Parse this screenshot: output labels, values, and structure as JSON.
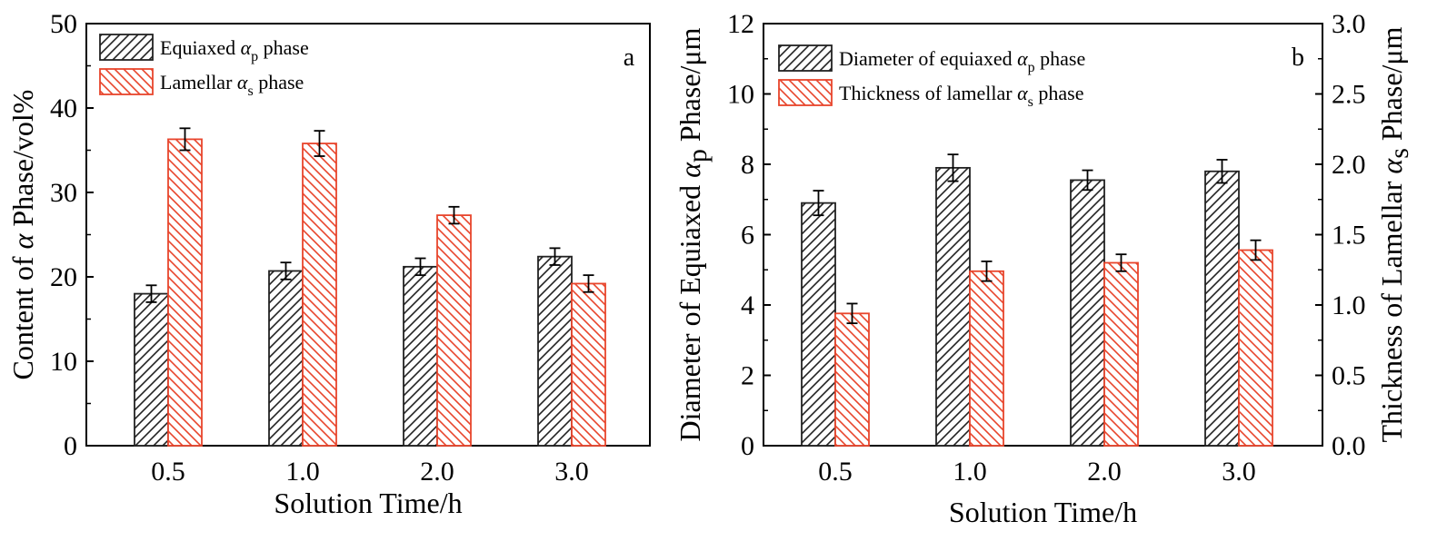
{
  "colors": {
    "series1": "#222222",
    "series2": "#e8452c",
    "axis": "#000000",
    "background": "#ffffff"
  },
  "chart_data": [
    {
      "type": "bar",
      "panel": "a",
      "categories": [
        "0.5",
        "1.0",
        "2.0",
        "3.0"
      ],
      "xlabel": "Solution Time/h",
      "ylabel": {
        "pre": "Content of ",
        "greek": "α",
        "post": " Phase/vol%"
      },
      "ylim": [
        0,
        50
      ],
      "yticks": [
        0,
        10,
        20,
        30,
        40,
        50
      ],
      "legend_position": "top-left",
      "series": [
        {
          "pre": "Equiaxed ",
          "greek": "α",
          "sub": "p",
          "post": " phase",
          "pattern": "hatch-forward",
          "values": [
            18.0,
            20.7,
            21.2,
            22.4
          ],
          "errors": [
            1.0,
            1.0,
            1.0,
            1.0
          ]
        },
        {
          "pre": "Lamellar ",
          "greek": "α",
          "sub": "s",
          "post": " phase",
          "pattern": "hatch-backward",
          "values": [
            36.3,
            35.8,
            27.3,
            19.2
          ],
          "errors": [
            1.3,
            1.5,
            1.0,
            1.0
          ]
        }
      ]
    },
    {
      "type": "bar",
      "panel": "b",
      "categories": [
        "0.5",
        "1.0",
        "2.0",
        "3.0"
      ],
      "xlabel": "Solution Time/h",
      "ylabel_left": {
        "pre": "Diameter of Equiaxed ",
        "greek": "α",
        "sub": "p",
        "post": " Phase/μm"
      },
      "ylabel_right": {
        "pre": "Thickness of Lamellar ",
        "greek": "α",
        "sub": "s",
        "post": " Phase/μm"
      },
      "ylim_left": [
        0,
        12
      ],
      "yticks_left": [
        0,
        2,
        4,
        6,
        8,
        10,
        12
      ],
      "ylim_right": [
        0.0,
        3.0
      ],
      "yticks_right": [
        "0.0",
        "0.5",
        "1.0",
        "1.5",
        "2.0",
        "2.5",
        "3.0"
      ],
      "legend_position": "top-left",
      "series": [
        {
          "pre": "Diameter of equiaxed ",
          "greek": "α",
          "sub": "p",
          "post": " phase",
          "axis": "left",
          "pattern": "hatch-forward",
          "values": [
            6.9,
            7.9,
            7.55,
            7.8
          ],
          "errors": [
            0.35,
            0.38,
            0.28,
            0.33
          ]
        },
        {
          "pre": "Thickness of lamellar ",
          "greek": "α",
          "sub": "s",
          "post": " phase",
          "axis": "right",
          "pattern": "hatch-backward",
          "values": [
            0.94,
            1.24,
            1.3,
            1.39
          ],
          "errors": [
            0.07,
            0.07,
            0.06,
            0.07
          ]
        }
      ]
    }
  ]
}
